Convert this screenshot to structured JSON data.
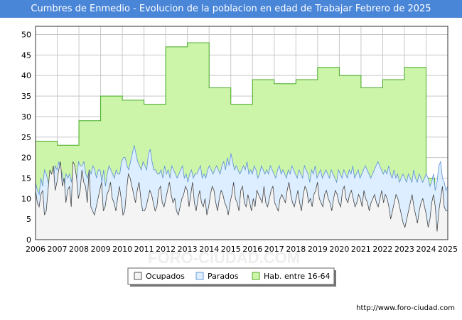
{
  "header": {
    "title": "Cumbres de Enmedio - Evolucion de la poblacion en edad de Trabajar Febrero de 2025"
  },
  "footer": {
    "url": "http://www.foro-ciudad.com"
  },
  "watermark": "FORO-CIUDAD.COM",
  "chart_data": {
    "type": "area",
    "title": "Cumbres de Enmedio - Evolucion de la poblacion en edad de Trabajar Febrero de 2025",
    "x_range": [
      2006,
      2025
    ],
    "x_ticks": [
      "2006",
      "2007",
      "2008",
      "2009",
      "2010",
      "2011",
      "2012",
      "2013",
      "2014",
      "2015",
      "2016",
      "2017",
      "2018",
      "2019",
      "2020",
      "2021",
      "2022",
      "2023",
      "2024",
      "2025"
    ],
    "ylim": [
      0,
      52
    ],
    "y_ticks": [
      0,
      5,
      10,
      15,
      20,
      25,
      30,
      35,
      40,
      45,
      50
    ],
    "grid": true,
    "legend": {
      "placement": "bottom-center",
      "entries": [
        {
          "label": "Ocupados",
          "color": "#f4f4f4",
          "border": "#555555"
        },
        {
          "label": "Parados",
          "color": "#dceeff",
          "border": "#6a9ad8"
        },
        {
          "label": "Hab. entre 16-64",
          "color": "#ccf5aa",
          "border": "#55aa22"
        }
      ]
    },
    "series": [
      {
        "name": "Hab. entre 16-64",
        "fill": "#ccf5aa",
        "stroke": "#44aa22",
        "x": [
          2006,
          2007,
          2008,
          2009,
          2010,
          2011,
          2012,
          2013,
          2014,
          2015,
          2016,
          2017,
          2018,
          2019,
          2020,
          2021,
          2022,
          2023,
          2024
        ],
        "values": [
          24,
          23,
          29,
          35,
          34,
          33,
          47,
          48,
          37,
          33,
          39,
          38,
          39,
          42,
          40,
          37,
          39,
          42,
          15
        ]
      },
      {
        "name": "Parados",
        "fill": "#dceeff",
        "stroke": "#5b8fd6",
        "values": [
          14,
          12,
          11,
          15,
          13,
          17,
          16,
          14,
          13,
          13,
          15,
          18,
          17,
          19,
          17,
          16,
          13,
          16,
          15,
          16,
          14,
          17,
          15,
          15,
          19,
          18,
          18,
          19,
          16,
          15,
          17,
          16,
          18,
          17,
          15,
          17,
          17,
          14,
          17,
          13,
          16,
          18,
          17,
          16,
          15,
          17,
          16,
          16,
          19,
          20,
          20,
          18,
          17,
          19,
          21,
          23,
          21,
          19,
          18,
          17,
          19,
          18,
          17,
          21,
          22,
          19,
          17,
          17,
          16,
          16,
          17,
          15,
          18,
          16,
          17,
          15,
          18,
          17,
          16,
          15,
          16,
          17,
          18,
          15,
          16,
          14,
          16,
          17,
          15,
          16,
          16,
          17,
          18,
          15,
          16,
          15,
          17,
          18,
          17,
          16,
          17,
          18,
          17,
          16,
          18,
          19,
          17,
          20,
          18,
          21,
          19,
          17,
          18,
          17,
          16,
          17,
          18,
          17,
          19,
          16,
          17,
          16,
          18,
          17,
          15,
          16,
          18,
          17,
          16,
          17,
          16,
          18,
          17,
          16,
          15,
          17,
          18,
          16,
          17,
          16,
          15,
          17,
          16,
          18,
          17,
          16,
          15,
          17,
          16,
          15,
          18,
          17,
          16,
          14,
          17,
          16,
          18,
          15,
          16,
          17,
          15,
          16,
          17,
          16,
          15,
          17,
          16,
          15,
          14,
          17,
          16,
          15,
          17,
          16,
          15,
          17,
          16,
          18,
          15,
          16,
          17,
          15,
          16,
          17,
          18,
          17,
          16,
          15,
          16,
          17,
          18,
          19,
          18,
          17,
          16,
          17,
          16,
          18,
          16,
          15,
          17,
          15,
          16,
          14,
          15,
          16,
          15,
          14,
          16,
          15,
          14,
          17,
          15,
          14,
          16,
          15,
          14,
          15,
          16,
          15,
          13,
          14,
          16,
          12,
          14,
          18,
          19,
          15,
          14,
          12,
          13
        ]
      },
      {
        "name": "Ocupados",
        "fill": "#f4f4f4",
        "stroke": "#444444",
        "values": [
          12,
          9,
          8,
          11,
          12,
          6,
          7,
          12,
          17,
          16,
          18,
          12,
          14,
          17,
          19,
          13,
          15,
          9,
          12,
          13,
          8,
          19,
          18,
          15,
          10,
          12,
          17,
          14,
          13,
          9,
          17,
          8,
          7,
          6,
          8,
          10,
          12,
          14,
          7,
          8,
          11,
          12,
          14,
          10,
          9,
          7,
          10,
          13,
          10,
          6,
          7,
          12,
          16,
          15,
          13,
          11,
          9,
          12,
          14,
          10,
          7,
          7,
          8,
          10,
          12,
          11,
          9,
          7,
          8,
          12,
          13,
          9,
          8,
          10,
          12,
          14,
          11,
          9,
          10,
          7,
          6,
          8,
          10,
          11,
          13,
          12,
          8,
          11,
          14,
          9,
          7,
          10,
          12,
          9,
          8,
          10,
          6,
          8,
          11,
          13,
          12,
          9,
          7,
          10,
          12,
          11,
          9,
          8,
          6,
          9,
          11,
          14,
          10,
          9,
          7,
          12,
          13,
          9,
          8,
          11,
          9,
          7,
          10,
          8,
          12,
          11,
          10,
          9,
          13,
          9,
          8,
          10,
          12,
          13,
          9,
          8,
          7,
          10,
          11,
          10,
          9,
          12,
          14,
          11,
          9,
          8,
          10,
          12,
          9,
          7,
          11,
          13,
          12,
          9,
          10,
          8,
          11,
          12,
          14,
          10,
          9,
          8,
          11,
          12,
          10,
          9,
          7,
          10,
          12,
          11,
          9,
          8,
          12,
          13,
          10,
          9,
          11,
          12,
          10,
          8,
          9,
          11,
          10,
          8,
          12,
          10,
          9,
          7,
          9,
          10,
          11,
          9,
          8,
          10,
          12,
          9,
          11,
          10,
          8,
          5,
          7,
          9,
          11,
          10,
          8,
          6,
          4,
          3,
          5,
          7,
          9,
          11,
          8,
          6,
          4,
          7,
          9,
          10,
          8,
          6,
          3,
          5,
          9,
          11,
          8,
          2,
          7,
          10,
          13,
          8,
          7,
          7
        ]
      }
    ]
  }
}
